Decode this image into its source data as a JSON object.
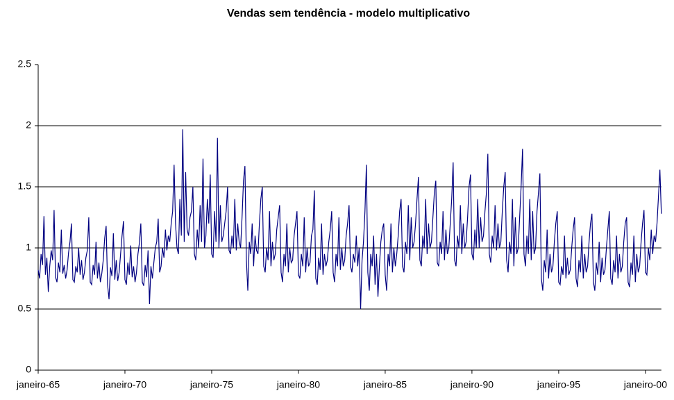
{
  "chart_data": {
    "type": "line",
    "title": "Vendas sem tendência - modelo multiplicativo",
    "categories": [
      "janeiro-65",
      null,
      null,
      null,
      null,
      null,
      null,
      null,
      null,
      null,
      null,
      null,
      null,
      null,
      null,
      null,
      null,
      null,
      null,
      null,
      null,
      null,
      null,
      null,
      null,
      null,
      null,
      null,
      null,
      null,
      null,
      null,
      null,
      null,
      null,
      null,
      null,
      null,
      null,
      null,
      null,
      null,
      null,
      null,
      null,
      null,
      null,
      null,
      null,
      null,
      null,
      null,
      null,
      null,
      null,
      null,
      null,
      null,
      null,
      null,
      "janeiro-70",
      null,
      null,
      null,
      null,
      null,
      null,
      null,
      null,
      null,
      null,
      null,
      null,
      null,
      null,
      null,
      null,
      null,
      null,
      null,
      null,
      null,
      null,
      null,
      null,
      null,
      null,
      null,
      null,
      null,
      null,
      null,
      null,
      null,
      null,
      null,
      null,
      null,
      null,
      null,
      null,
      null,
      null,
      null,
      null,
      null,
      null,
      null,
      null,
      null,
      null,
      null,
      null,
      null,
      null,
      null,
      null,
      null,
      null,
      null,
      "janeiro-75",
      null,
      null,
      null,
      null,
      null,
      null,
      null,
      null,
      null,
      null,
      null,
      null,
      null,
      null,
      null,
      null,
      null,
      null,
      null,
      null,
      null,
      null,
      null,
      null,
      null,
      null,
      null,
      null,
      null,
      null,
      null,
      null,
      null,
      null,
      null,
      null,
      null,
      null,
      null,
      null,
      null,
      null,
      null,
      null,
      null,
      null,
      null,
      null,
      null,
      null,
      null,
      null,
      null,
      null,
      null,
      null,
      null,
      null,
      null,
      "janeiro-80",
      null,
      null,
      null,
      null,
      null,
      null,
      null,
      null,
      null,
      null,
      null,
      null,
      null,
      null,
      null,
      null,
      null,
      null,
      null,
      null,
      null,
      null,
      null,
      null,
      null,
      null,
      null,
      null,
      null,
      null,
      null,
      null,
      null,
      null,
      null,
      null,
      null,
      null,
      null,
      null,
      null,
      null,
      null,
      null,
      null,
      null,
      null,
      null,
      null,
      null,
      null,
      null,
      null,
      null,
      null,
      null,
      null,
      null,
      null,
      "janeiro-85",
      null,
      null,
      null,
      null,
      null,
      null,
      null,
      null,
      null,
      null,
      null,
      null,
      null,
      null,
      null,
      null,
      null,
      null,
      null,
      null,
      null,
      null,
      null,
      null,
      null,
      null,
      null,
      null,
      null,
      null,
      null,
      null,
      null,
      null,
      null,
      null,
      null,
      null,
      null,
      null,
      null,
      null,
      null,
      null,
      null,
      null,
      null,
      null,
      null,
      null,
      null,
      null,
      null,
      null,
      null,
      null,
      null,
      null,
      null,
      "janeiro-90",
      null,
      null,
      null,
      null,
      null,
      null,
      null,
      null,
      null,
      null,
      null,
      null,
      null,
      null,
      null,
      null,
      null,
      null,
      null,
      null,
      null,
      null,
      null,
      null,
      null,
      null,
      null,
      null,
      null,
      null,
      null,
      null,
      null,
      null,
      null,
      null,
      null,
      null,
      null,
      null,
      null,
      null,
      null,
      null,
      null,
      null,
      null,
      null,
      null,
      null,
      null,
      null,
      null,
      null,
      null,
      null,
      null,
      null,
      null,
      "janeiro-95",
      null,
      null,
      null,
      null,
      null,
      null,
      null,
      null,
      null,
      null,
      null,
      null,
      null,
      null,
      null,
      null,
      null,
      null,
      null,
      null,
      null,
      null,
      null,
      null,
      null,
      null,
      null,
      null,
      null,
      null,
      null,
      null,
      null,
      null,
      null,
      null,
      null,
      null,
      null,
      null,
      null,
      null,
      null,
      null,
      null,
      null,
      null,
      null,
      null,
      null,
      null,
      null,
      null,
      null,
      null,
      null,
      null,
      null,
      null,
      "janeiro-00",
      null,
      null,
      null,
      null,
      null,
      null,
      null,
      null,
      null,
      null,
      null
    ],
    "values": [
      0.82,
      0.75,
      0.95,
      0.86,
      1.26,
      0.78,
      0.92,
      0.64,
      0.85,
      0.98,
      0.9,
      1.31,
      0.76,
      0.72,
      0.88,
      0.8,
      1.15,
      0.79,
      0.86,
      0.75,
      0.82,
      0.96,
      1.05,
      1.2,
      0.74,
      0.72,
      0.85,
      0.8,
      1.0,
      0.78,
      0.9,
      0.74,
      0.8,
      0.92,
      0.98,
      1.25,
      0.72,
      0.7,
      0.86,
      0.78,
      1.05,
      0.75,
      0.88,
      0.72,
      0.79,
      0.9,
      1.08,
      1.18,
      0.7,
      0.58,
      0.84,
      0.77,
      1.12,
      0.74,
      0.9,
      0.73,
      0.8,
      0.95,
      1.1,
      1.22,
      0.74,
      0.7,
      0.88,
      0.78,
      1.02,
      0.76,
      0.85,
      0.72,
      0.8,
      0.95,
      1.04,
      1.2,
      0.72,
      0.69,
      0.86,
      0.76,
      0.98,
      0.54,
      0.85,
      0.75,
      0.88,
      1.0,
      1.05,
      1.24,
      0.8,
      0.85,
      1.0,
      0.92,
      1.15,
      0.98,
      1.1,
      1.05,
      1.2,
      1.3,
      1.68,
      1.2,
      1.0,
      0.95,
      1.4,
      1.1,
      1.97,
      1.05,
      1.62,
      1.15,
      1.1,
      1.25,
      1.3,
      1.5,
      0.95,
      0.9,
      1.15,
      1.0,
      1.35,
      1.05,
      1.73,
      1.0,
      1.1,
      1.4,
      1.2,
      1.6,
      0.95,
      0.92,
      1.3,
      1.05,
      1.9,
      1.0,
      1.35,
      1.05,
      1.1,
      1.2,
      1.3,
      1.5,
      0.98,
      0.95,
      1.1,
      1.0,
      1.4,
      0.98,
      1.2,
      1.05,
      1.0,
      1.25,
      1.55,
      1.67,
      0.9,
      0.65,
      1.05,
      0.95,
      1.2,
      0.85,
      1.1,
      0.98,
      0.95,
      1.2,
      1.4,
      1.5,
      0.85,
      0.8,
      1.0,
      0.9,
      1.3,
      0.85,
      1.05,
      0.9,
      0.95,
      1.15,
      1.25,
      1.35,
      0.8,
      0.72,
      0.95,
      0.85,
      1.2,
      0.8,
      1.0,
      0.88,
      0.9,
      1.1,
      1.2,
      1.3,
      0.78,
      0.75,
      0.95,
      0.85,
      1.25,
      0.8,
      1.0,
      0.85,
      0.88,
      1.1,
      1.15,
      1.47,
      0.75,
      0.7,
      0.92,
      0.82,
      1.2,
      0.78,
      0.95,
      0.85,
      0.9,
      1.05,
      1.15,
      1.3,
      0.8,
      0.72,
      0.95,
      0.85,
      1.25,
      0.82,
      1.0,
      0.85,
      0.9,
      1.1,
      1.2,
      1.35,
      0.85,
      0.8,
      0.95,
      0.88,
      1.1,
      0.85,
      1.0,
      0.5,
      0.9,
      1.05,
      1.3,
      1.68,
      0.8,
      0.65,
      0.95,
      0.85,
      1.1,
      0.7,
      0.95,
      0.6,
      0.85,
      1.05,
      1.15,
      1.2,
      0.78,
      0.65,
      0.95,
      0.85,
      1.2,
      0.8,
      1.0,
      0.85,
      0.95,
      1.1,
      1.3,
      1.4,
      0.85,
      0.8,
      1.05,
      0.95,
      1.35,
      0.9,
      1.25,
      1.0,
      1.05,
      1.2,
      1.4,
      1.58,
      0.9,
      0.85,
      1.1,
      1.0,
      1.4,
      0.95,
      1.2,
      1.0,
      1.05,
      1.25,
      1.45,
      1.55,
      0.88,
      0.85,
      1.05,
      0.95,
      1.3,
      0.9,
      1.15,
      0.95,
      1.0,
      1.2,
      1.4,
      1.7,
      0.9,
      0.85,
      1.1,
      1.0,
      1.35,
      0.95,
      1.2,
      1.0,
      1.05,
      1.25,
      1.5,
      1.6,
      0.95,
      0.9,
      1.15,
      1.0,
      1.4,
      1.0,
      1.25,
      1.05,
      1.1,
      1.3,
      1.45,
      1.77,
      0.95,
      0.88,
      1.1,
      1.0,
      1.35,
      0.98,
      1.2,
      1.0,
      1.05,
      1.3,
      1.5,
      1.62,
      0.9,
      0.8,
      1.05,
      0.95,
      1.4,
      0.85,
      1.25,
      0.95,
      1.0,
      1.25,
      1.5,
      1.81,
      0.95,
      0.85,
      1.1,
      0.95,
      1.4,
      0.9,
      1.3,
      0.95,
      1.0,
      1.3,
      1.45,
      1.61,
      0.75,
      0.65,
      0.9,
      0.8,
      1.15,
      0.75,
      0.95,
      0.8,
      0.85,
      1.05,
      1.2,
      1.3,
      0.72,
      0.7,
      0.85,
      0.78,
      1.1,
      0.75,
      0.92,
      0.78,
      0.82,
      1.0,
      1.15,
      1.25,
      0.75,
      0.68,
      0.9,
      0.8,
      1.1,
      0.75,
      0.95,
      0.8,
      0.85,
      1.05,
      1.2,
      1.28,
      0.72,
      0.65,
      0.88,
      0.78,
      1.05,
      0.72,
      0.92,
      0.78,
      0.82,
      1.0,
      1.15,
      1.3,
      0.75,
      0.7,
      0.9,
      0.8,
      1.1,
      0.75,
      0.95,
      0.8,
      0.85,
      1.05,
      1.2,
      1.25,
      0.72,
      0.68,
      0.88,
      0.78,
      1.1,
      0.72,
      0.95,
      0.8,
      0.85,
      1.05,
      1.2,
      1.31,
      0.8,
      0.78,
      1.0,
      0.9,
      1.15,
      0.95,
      1.1,
      1.05,
      1.2,
      1.42,
      1.64,
      1.28
    ],
    "color": "#000080",
    "ylim": [
      0,
      2.5
    ],
    "yticks": [
      0,
      0.5,
      1,
      1.5,
      2,
      2.5
    ],
    "grid": true
  }
}
